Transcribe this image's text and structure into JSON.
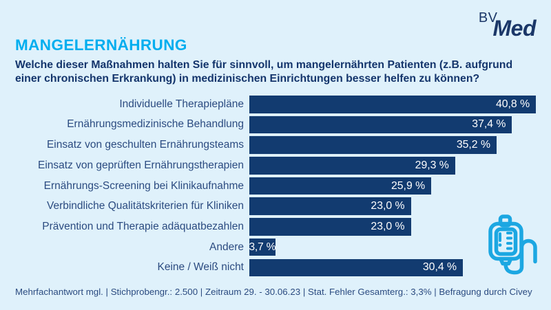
{
  "logo": {
    "bv": "BV",
    "med": "Med"
  },
  "header": {
    "title": "MANGELERNÄHRUNG",
    "subtitle": "Welche dieser Maßnahmen halten Sie für sinnvoll, um mangelernährten Patienten (z.B. aufgrund einer chronischen Erkrankung) in medizinischen Einrichtungen besser helfen zu können?"
  },
  "chart_data": {
    "type": "bar",
    "orientation": "horizontal",
    "title": "MANGELERNÄHRUNG",
    "categories": [
      "Individuelle Therapiepläne",
      "Ernährungsmedizinische Behandlung",
      "Einsatz von geschulten Ernährungsteams",
      "Einsatz von geprüften Ernährungstherapien",
      "Ernährungs-Screening bei Klinikaufnahme",
      "Verbindliche Qualitätskriterien für Kliniken",
      "Prävention und Therapie adäquatbezahlen",
      "Andere",
      "Keine / Weiß nicht"
    ],
    "values": [
      40.8,
      37.4,
      35.2,
      29.3,
      25.9,
      23.0,
      23.0,
      3.7,
      30.4
    ],
    "value_labels": [
      "40,8 %",
      "37,4 %",
      "35,2 %",
      "29,3 %",
      "25,9 %",
      "23,0 %",
      "23,0 %",
      "3,7 %",
      "30,4 %"
    ],
    "unit": "%",
    "xlim": [
      0,
      40.8
    ],
    "grid": false,
    "legend": "none",
    "bar_color": "#123B70",
    "value_label_color": "#FFFFFF"
  },
  "footer": {
    "text": "Mehrfachantwort mgl. | Stichprobengr.: 2.500 | Zeitraum 29. - 30.06.23 | Stat. Fehler Gesamterg.: 3,3% | Befragung durch Civey"
  },
  "icons": {
    "bottom_right": "iv-drip-bag-icon"
  },
  "colors": {
    "background": "#DFF1FB",
    "accent_cyan": "#00AEEF",
    "navy_text": "#14356C",
    "label_blue": "#2B4B80",
    "bar_navy": "#123B70",
    "logo_navy": "#1B3768",
    "icon_cyan": "#1CA7E2"
  }
}
